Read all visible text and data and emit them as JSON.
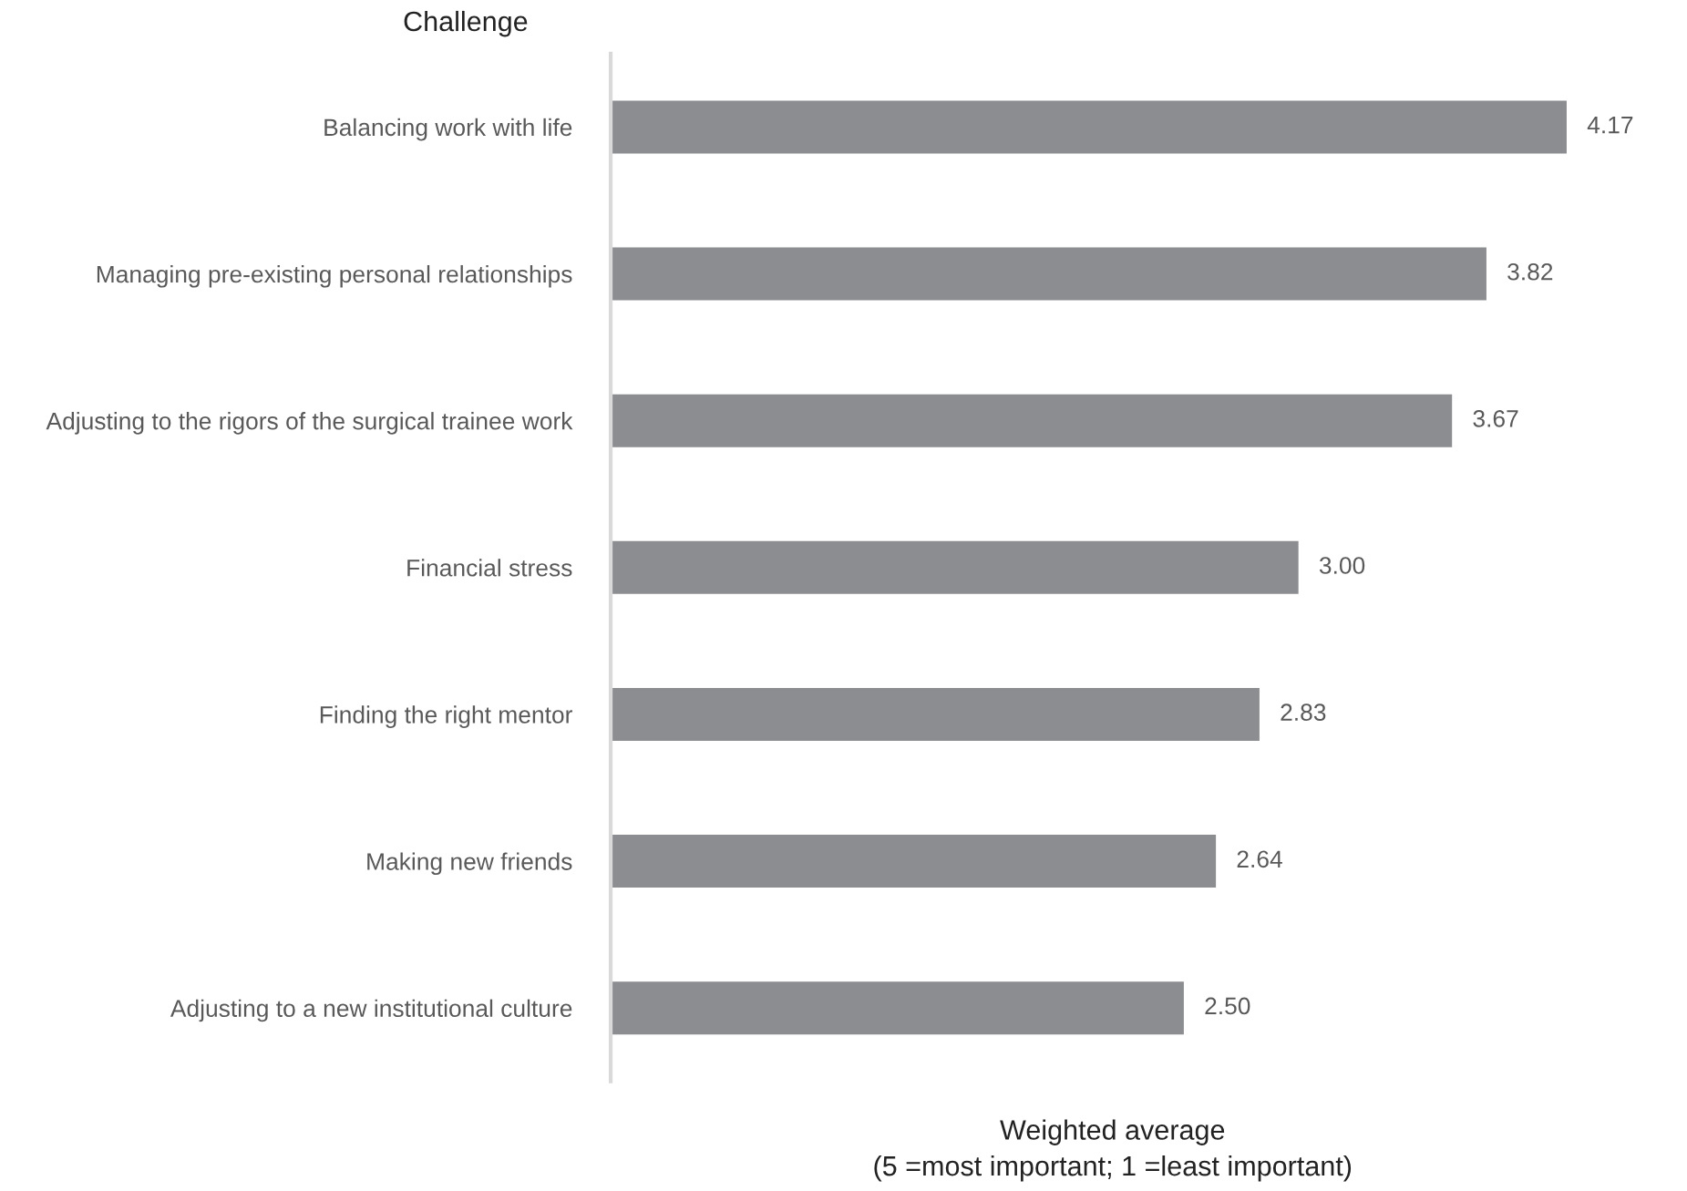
{
  "chart_data": {
    "type": "bar",
    "orientation": "horizontal",
    "title": "Challenge",
    "xlabel": "Weighted average\n(5 =most important; 1 =least important)",
    "categories": [
      "Balancing work with life",
      "Managing pre-existing personal relationships",
      "Adjusting to the rigors of the surgical trainee work",
      "Financial stress",
      "Finding the right mentor",
      "Making new friends",
      "Adjusting to a new institutional culture"
    ],
    "values": [
      4.17,
      3.82,
      3.67,
      3.0,
      2.83,
      2.64,
      2.5
    ],
    "value_labels": [
      "4.17",
      "3.82",
      "3.67",
      "3.00",
      "2.83",
      "2.64",
      "2.50"
    ],
    "color": "#8c8d91",
    "grid": false,
    "legend": false
  }
}
